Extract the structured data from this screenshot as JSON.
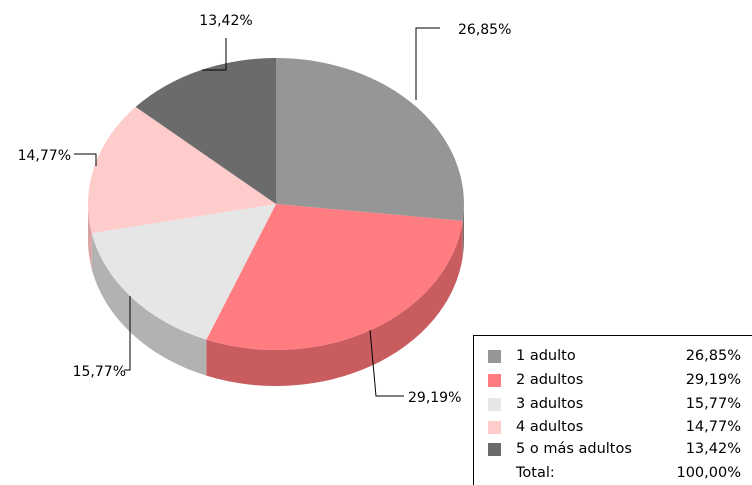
{
  "chart_data": {
    "type": "pie",
    "series": [
      {
        "name": "1 adulto",
        "value": 26.85,
        "label": "26,85%",
        "color": "#969696",
        "side_color": "#6f6f6f"
      },
      {
        "name": "2 adultos",
        "value": 29.19,
        "label": "29,19%",
        "color": "#ff7c80",
        "side_color": "#c85c5e"
      },
      {
        "name": "3 adultos",
        "value": 15.77,
        "label": "15,77%",
        "color": "#e6e6e6",
        "side_color": "#b2b2b2"
      },
      {
        "name": "4 adultos",
        "value": 14.77,
        "label": "14,77%",
        "color": "#ffcccc",
        "side_color": "#d9a3a3"
      },
      {
        "name": "5 o más adultos",
        "value": 13.42,
        "label": "13,42%",
        "color": "#6b6b6b",
        "side_color": "#4e4e4e"
      }
    ],
    "total": {
      "label": "Total:",
      "value": "100,00%"
    },
    "legend_position": "bottom-right",
    "style": "3d-pie"
  }
}
